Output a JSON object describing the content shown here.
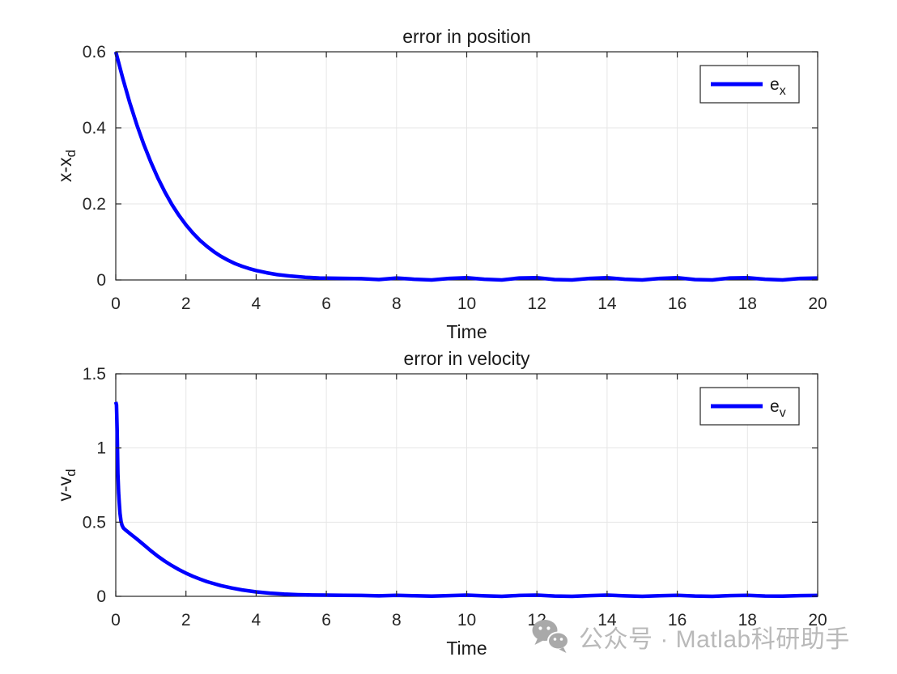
{
  "figure": {
    "background": "#ffffff"
  },
  "watermark": {
    "icon": "wechat-icon",
    "icon_color": "#a9a9a9",
    "text": "公众号 · Matlab科研助手",
    "color": "#b9b9b9"
  },
  "chart_data": [
    {
      "type": "line",
      "title": "error in position",
      "xlabel": "Time",
      "ylabel": "x-x",
      "ylabel_sub": "d",
      "legend": {
        "label": "e",
        "label_sub": "x",
        "position": "northeast"
      },
      "line_color": "#0000ff",
      "line_width": 4.5,
      "grid": true,
      "grid_color": "#e6e6e6",
      "axis_color": "#262626",
      "text_color": "#1a1a1a",
      "xlim": [
        0,
        20
      ],
      "ylim": [
        0,
        0.6
      ],
      "xticks": [
        0,
        2,
        4,
        6,
        8,
        10,
        12,
        14,
        16,
        18,
        20
      ],
      "yticks": [
        0,
        0.2,
        0.4,
        0.6
      ],
      "x": [
        0,
        0.2,
        0.4,
        0.6,
        0.8,
        1,
        1.2,
        1.4,
        1.6,
        1.8,
        2,
        2.2,
        2.4,
        2.6,
        2.8,
        3,
        3.2,
        3.4,
        3.6,
        3.8,
        4,
        4.3,
        4.6,
        5,
        5.4,
        5.8,
        6.2,
        6.6,
        7,
        7.5,
        8,
        8.5,
        9,
        9.5,
        10,
        10.5,
        11,
        11.5,
        12,
        12.5,
        13,
        13.5,
        14,
        14.5,
        15,
        15.5,
        16,
        16.5,
        17,
        17.5,
        18,
        18.5,
        19,
        19.5,
        20
      ],
      "y": [
        0.6,
        0.53,
        0.466,
        0.408,
        0.356,
        0.31,
        0.268,
        0.231,
        0.198,
        0.17,
        0.145,
        0.123,
        0.104,
        0.088,
        0.074,
        0.062,
        0.052,
        0.043,
        0.036,
        0.03,
        0.025,
        0.019,
        0.014,
        0.01,
        0.007,
        0.005,
        0.0045,
        0.004,
        0.0035,
        0.001,
        0.005,
        0.002,
        0.0,
        0.004,
        0.006,
        0.002,
        0.0,
        0.005,
        0.006,
        0.001,
        0.0,
        0.004,
        0.006,
        0.002,
        0.0,
        0.004,
        0.006,
        0.001,
        0.0,
        0.005,
        0.006,
        0.002,
        0.0,
        0.004,
        0.005
      ]
    },
    {
      "type": "line",
      "title": "error in velocity",
      "xlabel": "Time",
      "ylabel": "v-v",
      "ylabel_sub": "d",
      "legend": {
        "label": "e",
        "label_sub": "v",
        "position": "northeast"
      },
      "line_color": "#0000ff",
      "line_width": 4.5,
      "grid": true,
      "grid_color": "#e6e6e6",
      "axis_color": "#262626",
      "text_color": "#1a1a1a",
      "xlim": [
        0,
        20
      ],
      "ylim": [
        0,
        1.5
      ],
      "xticks": [
        0,
        2,
        4,
        6,
        8,
        10,
        12,
        14,
        16,
        18,
        20
      ],
      "yticks": [
        0,
        0.5,
        1,
        1.5
      ],
      "x": [
        0,
        0.02,
        0.04,
        0.05,
        0.06,
        0.08,
        0.1,
        0.12,
        0.15,
        0.18,
        0.22,
        0.3,
        0.4,
        0.5,
        0.6,
        0.8,
        1,
        1.2,
        1.4,
        1.6,
        1.8,
        2,
        2.2,
        2.4,
        2.6,
        2.8,
        3,
        3.3,
        3.6,
        4,
        4.4,
        4.8,
        5.2,
        5.6,
        6,
        6.5,
        7,
        7.5,
        8,
        8.5,
        9,
        9.5,
        10,
        10.5,
        11,
        11.5,
        12,
        12.5,
        13,
        13.5,
        14,
        14.5,
        15,
        15.5,
        16,
        16.5,
        17,
        17.5,
        18,
        18.5,
        19,
        19.5,
        20
      ],
      "y": [
        1.31,
        1.29,
        1.12,
        0.96,
        0.83,
        0.7,
        0.63,
        0.56,
        0.505,
        0.478,
        0.46,
        0.443,
        0.424,
        0.405,
        0.387,
        0.347,
        0.307,
        0.27,
        0.237,
        0.207,
        0.18,
        0.156,
        0.135,
        0.116,
        0.099,
        0.085,
        0.072,
        0.056,
        0.043,
        0.03,
        0.021,
        0.015,
        0.011,
        0.009,
        0.008,
        0.007,
        0.006,
        0.003,
        0.007,
        0.004,
        0.001,
        0.005,
        0.008,
        0.003,
        0.0,
        0.006,
        0.008,
        0.002,
        0.0,
        0.005,
        0.008,
        0.003,
        0.0,
        0.004,
        0.007,
        0.002,
        0.0,
        0.005,
        0.007,
        0.002,
        0.001,
        0.005,
        0.006
      ]
    }
  ]
}
